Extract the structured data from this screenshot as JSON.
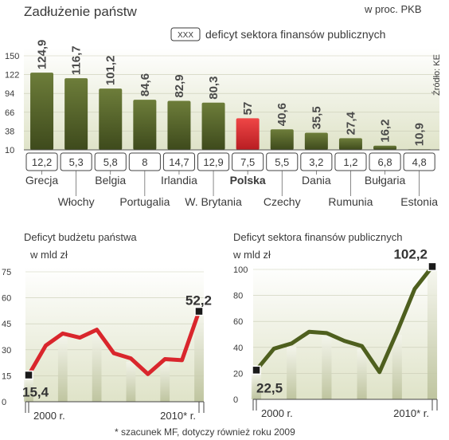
{
  "chart_data": [
    {
      "type": "bar",
      "title": "Zadłużenie państw",
      "unit": "w proc. PKB",
      "legend": "deficyt sektora finansów publicznych",
      "legend_box": "XXX",
      "source": "Źródło: KE",
      "ylim": [
        10,
        150
      ],
      "yticks": [
        10,
        38,
        66,
        94,
        122,
        150
      ],
      "categories": [
        "Grecja",
        "Włochy",
        "Belgia",
        "Portugalia",
        "Irlandia",
        "W. Brytania",
        "Polska",
        "Czechy",
        "Dania",
        "Rumunia",
        "Bułgaria",
        "Estonia"
      ],
      "values": [
        124.9,
        116.7,
        101.2,
        84.6,
        82.9,
        80.3,
        57,
        40.6,
        35.5,
        27.4,
        16.2,
        10.9
      ],
      "value_labels": [
        "124,9",
        "116,7",
        "101,2",
        "84,6",
        "82,9",
        "80,3",
        "57",
        "40,6",
        "35,5",
        "27,4",
        "16,2",
        "10,9"
      ],
      "deficit": [
        "12,2",
        "5,3",
        "5,8",
        "8",
        "14,7",
        "12,9",
        "7,5",
        "5,5",
        "3,2",
        "1,2",
        "6,8",
        "4,8"
      ],
      "highlight": "Polska",
      "bar_color": "#5c6b30",
      "highlight_color": "#d9262c"
    },
    {
      "type": "line",
      "title": "Deficyt budżetu państwa",
      "subtitle": "w mld zł",
      "ylim": [
        0,
        75
      ],
      "yticks": [
        0,
        15,
        30,
        45,
        60,
        75
      ],
      "x": [
        2000,
        2001,
        2002,
        2003,
        2004,
        2005,
        2006,
        2007,
        2008,
        2009,
        2010
      ],
      "values": [
        15.4,
        32.4,
        39.4,
        37,
        41.6,
        28,
        25,
        16,
        24.6,
        24,
        52.2
      ],
      "labels": {
        "first": "15,4",
        "last": "52,2"
      },
      "xtick_labels": [
        "2000 r.",
        "2010* r."
      ],
      "color": "#d9262c"
    },
    {
      "type": "line",
      "title": "Deficyt sektora finansów publicznych",
      "subtitle": "w mld zł",
      "ylim": [
        0,
        100
      ],
      "yticks": [
        0,
        20,
        40,
        60,
        80,
        100
      ],
      "x": [
        2000,
        2001,
        2002,
        2003,
        2004,
        2005,
        2006,
        2007,
        2008,
        2009,
        2010
      ],
      "values": [
        22.5,
        39,
        43,
        52,
        51,
        45,
        41,
        21,
        52,
        85,
        102.2
      ],
      "labels": {
        "first": "22,5",
        "last": "102,2"
      },
      "xtick_labels": [
        "2000 r.",
        "2010* r."
      ],
      "color": "#4e5f1e"
    }
  ],
  "footnote": "* szacunek MF, dotyczy również roku 2009"
}
